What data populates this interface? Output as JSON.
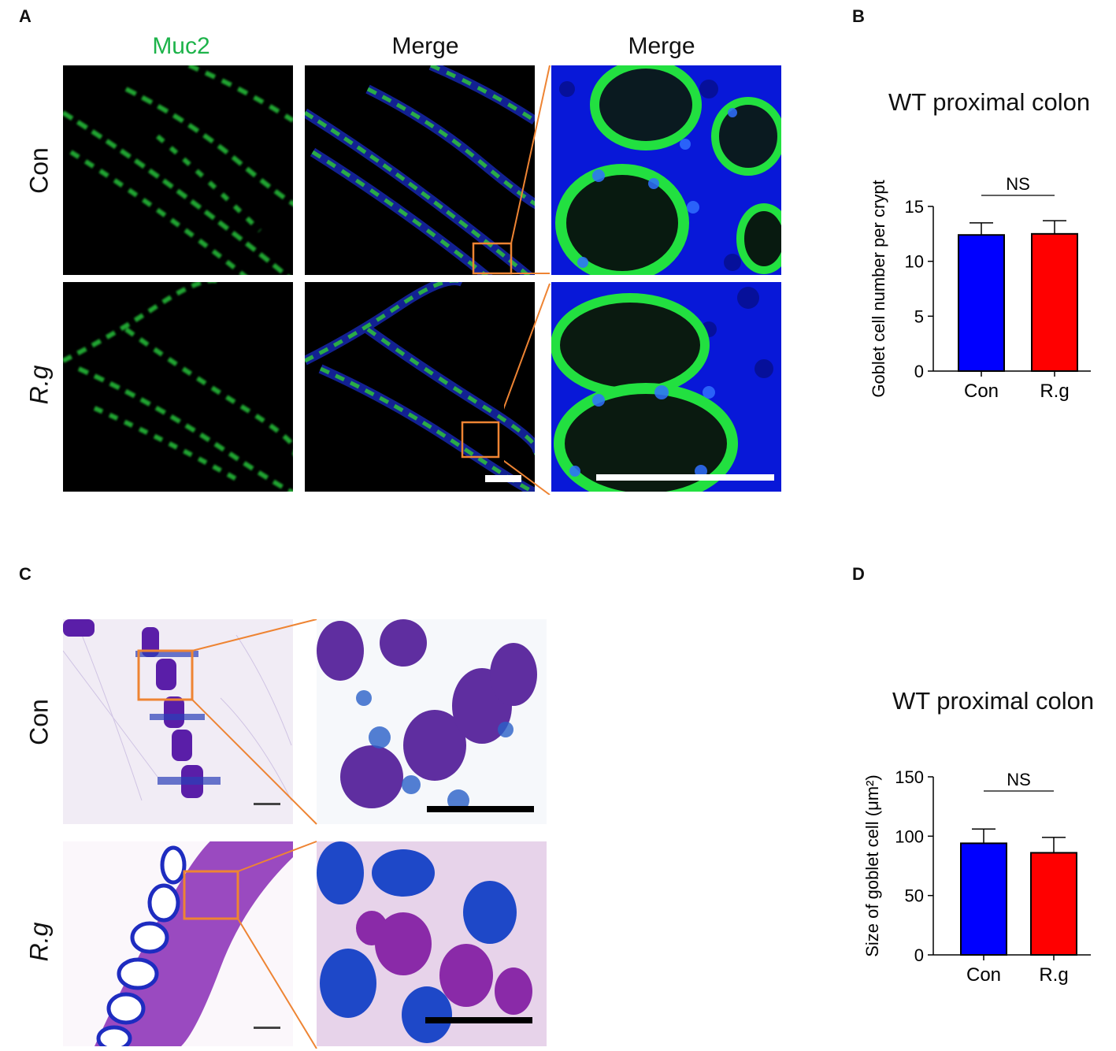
{
  "panels": {
    "a": "A",
    "b": "B",
    "c": "C",
    "d": "D"
  },
  "panel_a": {
    "col_titles": [
      "Muc2",
      "Merge",
      "Merge"
    ],
    "row_labels": [
      "Con",
      "R.g"
    ],
    "muc2_color": "#1db34a",
    "inset_box_color": "#ee8433"
  },
  "panel_c": {
    "row_labels": [
      "Con",
      "R.g"
    ]
  },
  "colors": {
    "con": "#0000ff",
    "rg": "#ff0000"
  },
  "chart_data": [
    {
      "type": "bar",
      "title": "WT proximal colon",
      "categories": [
        "Con",
        "R.g"
      ],
      "values": [
        12.4,
        12.5
      ],
      "errors": [
        1.1,
        1.2
      ],
      "ylabel": "Goblet cell number per crypt",
      "ylim": [
        0,
        15
      ],
      "yticks": [
        0,
        5,
        10,
        15
      ],
      "annotation": "NS"
    },
    {
      "type": "bar",
      "title": "WT proximal colon",
      "categories": [
        "Con",
        "R.g"
      ],
      "values": [
        94,
        86
      ],
      "errors": [
        12,
        13
      ],
      "ylabel": "Size of goblet cell (μm²)",
      "ylim": [
        0,
        150
      ],
      "yticks": [
        0,
        50,
        100,
        150
      ],
      "annotation": "NS"
    }
  ]
}
